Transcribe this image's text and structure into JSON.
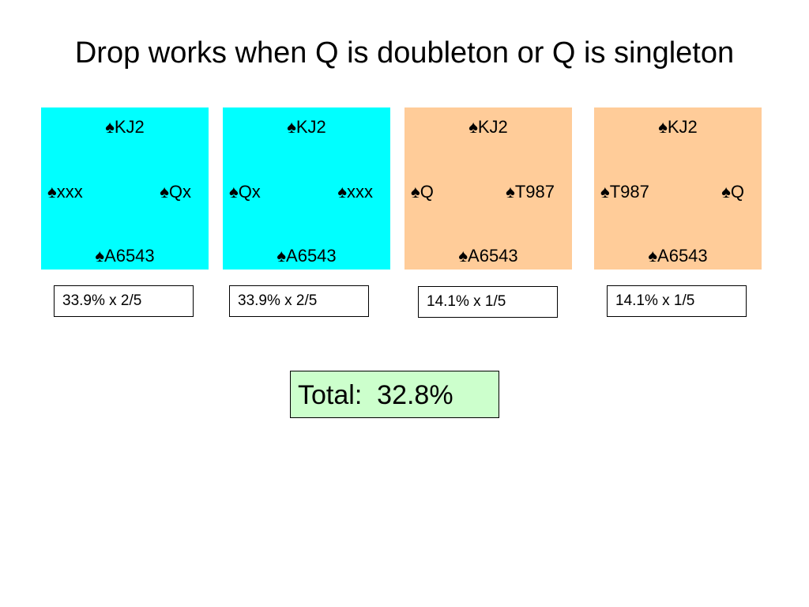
{
  "title": "Drop works when Q is doubleton or Q is singleton",
  "colors": {
    "doubleton_panel": "#00ffff",
    "singleton_panel": "#ffcc99",
    "total_box": "#ccffcc"
  },
  "deals": [
    {
      "north": "♠KJ2",
      "west": "♠xxx",
      "east": "♠Qx",
      "south": "♠A6543",
      "calc": "33.9% x 2/5"
    },
    {
      "north": "♠KJ2",
      "west": "♠Qx",
      "east": "♠xxx",
      "south": "♠A6543",
      "calc": "33.9% x 2/5"
    },
    {
      "north": "♠KJ2",
      "west": "♠Q",
      "east": "♠T987",
      "south": "♠A6543",
      "calc": "14.1% x 1/5"
    },
    {
      "north": "♠KJ2",
      "west": "♠T987",
      "east": "♠Q",
      "south": "♠A6543",
      "calc": "14.1% x 1/5"
    }
  ],
  "total": "Total:  32.8%"
}
